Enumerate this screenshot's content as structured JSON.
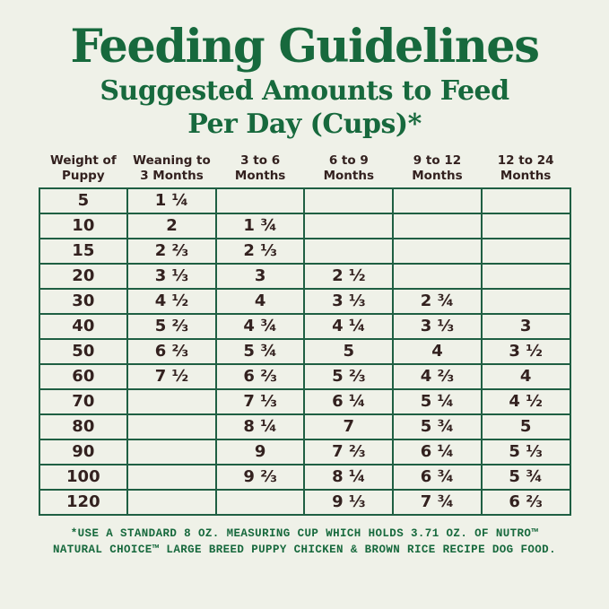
{
  "colors": {
    "background": "#eff1e8",
    "green": "#17693d",
    "border_green": "#1f5f43",
    "brown": "#33211f"
  },
  "header": {
    "title": "Feeding Guidelines",
    "subtitle_line1": "Suggested Amounts to Feed",
    "subtitle_line2": "Per Day (Cups)*"
  },
  "chart_data": {
    "type": "table",
    "title": "Feeding Guidelines",
    "subtitle": "Suggested Amounts to Feed Per Day (Cups)*",
    "columns": [
      "Weight of Puppy",
      "Weaning to 3 Months",
      "3 to 6 Months",
      "6 to 9 Months",
      "9 to 12 Months",
      "12 to 24 Months"
    ],
    "rows": [
      [
        "5",
        "1 ¼",
        "",
        "",
        "",
        ""
      ],
      [
        "10",
        "2",
        "1 ¾",
        "",
        "",
        ""
      ],
      [
        "15",
        "2 ⅔",
        "2 ⅓",
        "",
        "",
        ""
      ],
      [
        "20",
        "3 ⅓",
        "3",
        "2 ½",
        "",
        ""
      ],
      [
        "30",
        "4 ½",
        "4",
        "3 ⅓",
        "2 ¾",
        ""
      ],
      [
        "40",
        "5 ⅔",
        "4 ¾",
        "4 ¼",
        "3 ⅓",
        "3"
      ],
      [
        "50",
        "6 ⅔",
        "5 ¾",
        "5",
        "4",
        "3 ½"
      ],
      [
        "60",
        "7 ½",
        "6 ⅔",
        "5 ⅔",
        "4 ⅔",
        "4"
      ],
      [
        "70",
        "",
        "7 ⅓",
        "6 ¼",
        "5 ¼",
        "4 ½"
      ],
      [
        "80",
        "",
        "8 ¼",
        "7",
        "5 ¾",
        "5"
      ],
      [
        "90",
        "",
        "9",
        "7 ⅔",
        "6 ¼",
        "5 ⅓"
      ],
      [
        "100",
        "",
        "9 ⅔",
        "8 ¼",
        "6 ¾",
        "5 ¾"
      ],
      [
        "120",
        "",
        "",
        "9 ⅓",
        "7 ¾",
        "6 ⅔"
      ]
    ],
    "footnote_line1": "*USE A STANDARD 8 OZ. MEASURING CUP WHICH HOLDS 3.71 OZ. OF NUTRO™",
    "footnote_line2": "NATURAL CHOICE™ LARGE BREED PUPPY CHICKEN & BROWN RICE RECIPE DOG FOOD."
  }
}
